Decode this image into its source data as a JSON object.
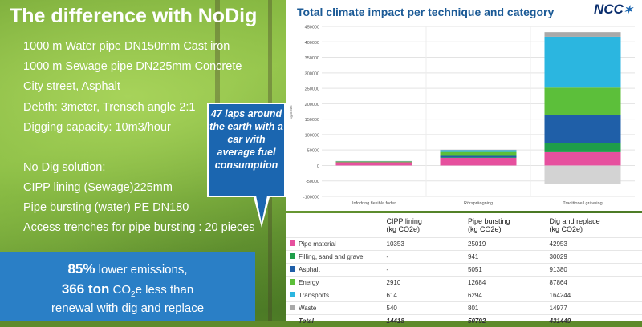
{
  "slide": {
    "title": "The difference with NoDig",
    "info_lines": [
      "1000 m Water pipe DN150mm Cast iron",
      "1000 m Sewage pipe DN225mm Concrete",
      "City street, Asphalt",
      "Debth: 3meter, Trensch angle 2:1",
      "Digging capacity: 10m3/hour"
    ],
    "nodig_heading": "No Dig solution:",
    "nodig_lines": [
      "CIPP lining (Sewage)225mm",
      "Pipe bursting (water) PE DN180",
      "Access trenches for pipe bursting : 20 pieces"
    ],
    "callout": "47 laps around the earth with a car with average fuel consumption",
    "result": {
      "pct": "85%",
      "pct_text": "lower emissions,",
      "ton": "366 ton",
      "co2_a": "CO",
      "co2_sub": "2",
      "co2_b": "e less than",
      "line3": "renewal with dig and replace"
    },
    "logo": "NCC"
  },
  "chart_data": {
    "type": "bar",
    "title": "Total climate impact per technique and category",
    "ylabel": "kg CO2e",
    "ylim": [
      -100000,
      450000
    ],
    "yticks": [
      -100000,
      -50000,
      0,
      50000,
      100000,
      150000,
      200000,
      250000,
      300000,
      350000,
      400000,
      450000
    ],
    "categories": [
      "Infodring flexibla foder",
      "Rörsprängning",
      "Traditionell grävning"
    ],
    "series": [
      {
        "name": "Pipe material",
        "color": "#e6509e",
        "values": [
          10353,
          25019,
          42953
        ]
      },
      {
        "name": "Filling, sand and gravel",
        "color": "#1e9e4a",
        "values": [
          0,
          941,
          30029
        ]
      },
      {
        "name": "Asphalt",
        "color": "#1f5fa8",
        "values": [
          0,
          5051,
          91380
        ]
      },
      {
        "name": "Energy",
        "color": "#5cbf3a",
        "values": [
          2910,
          12684,
          87864
        ]
      },
      {
        "name": "Transports",
        "color": "#2bb6e0",
        "values": [
          614,
          6294,
          164244
        ]
      },
      {
        "name": "Waste",
        "color": "#a9a9a9",
        "values": [
          540,
          801,
          14977
        ]
      }
    ],
    "negative_bar": {
      "category": "Traditionell grävning",
      "value": -60000,
      "color": "#d3d3d3"
    },
    "grid": true
  },
  "table": {
    "headers": [
      "",
      "CIPP lining\n(kg CO2e)",
      "Pipe bursting\n(kg CO2e)",
      "Dig and replace\n(kg CO2e)"
    ],
    "rows": [
      {
        "label": "Pipe material",
        "color": "#e6509e",
        "cipp": "10353",
        "burst": "25019",
        "dig": "42953"
      },
      {
        "label": "Filling, sand and gravel",
        "color": "#1e9e4a",
        "cipp": "-",
        "burst": "941",
        "dig": "30029"
      },
      {
        "label": "Asphalt",
        "color": "#1f5fa8",
        "cipp": "-",
        "burst": "5051",
        "dig": "91380"
      },
      {
        "label": "Energy",
        "color": "#5cbf3a",
        "cipp": "2910",
        "burst": "12684",
        "dig": "87864"
      },
      {
        "label": "Transports",
        "color": "#2bb6e0",
        "cipp": "614",
        "burst": "6294",
        "dig": "164244"
      },
      {
        "label": "Waste",
        "color": "#a9a9a9",
        "cipp": "540",
        "burst": "801",
        "dig": "14977"
      }
    ],
    "total": {
      "label": "Total",
      "cipp": "14418",
      "burst": "50792",
      "dig": "431449"
    }
  }
}
